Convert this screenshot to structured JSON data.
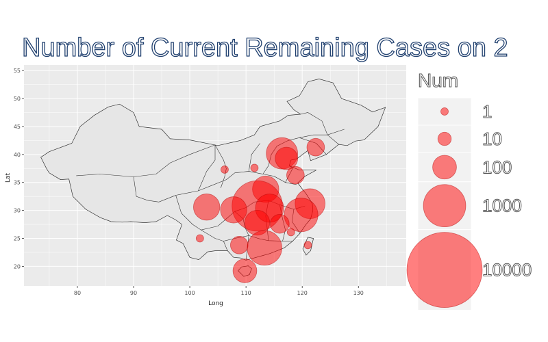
{
  "chart_data": {
    "type": "scatter",
    "title": "Number of Current Remaining Cases on 2",
    "xlabel": "Long",
    "ylabel": "Lat",
    "xlim": [
      70.5,
      138.5
    ],
    "ylim": [
      16.5,
      56
    ],
    "x_ticks": [
      80,
      90,
      100,
      110,
      120,
      130
    ],
    "y_ticks": [
      20,
      25,
      30,
      35,
      40,
      45,
      50,
      55
    ],
    "grid": true,
    "colors": {
      "panel": "#ebebeb",
      "grid": "#ffffff",
      "point": "#ff0000",
      "land": "#e6e6e6",
      "border": "#333333"
    },
    "legend": {
      "title": "Num",
      "placement": "right",
      "entries": [
        {
          "label": "1",
          "value": 1
        },
        {
          "label": "10",
          "value": 10
        },
        {
          "label": "100",
          "value": 100
        },
        {
          "label": "1000",
          "value": 1000
        },
        {
          "label": "10000",
          "value": 10000
        }
      ]
    },
    "points": [
      {
        "x": 116.4,
        "y": 40.2,
        "value": 300
      },
      {
        "x": 117.2,
        "y": 39.3,
        "value": 80
      },
      {
        "x": 122.4,
        "y": 41.3,
        "value": 30
      },
      {
        "x": 118.8,
        "y": 36.3,
        "value": 30
      },
      {
        "x": 113.5,
        "y": 33.8,
        "value": 150
      },
      {
        "x": 112.0,
        "y": 30.8,
        "value": 2000
      },
      {
        "x": 114.2,
        "y": 30.4,
        "value": 200
      },
      {
        "x": 121.4,
        "y": 31.2,
        "value": 250
      },
      {
        "x": 119.8,
        "y": 29.2,
        "value": 400
      },
      {
        "x": 112.0,
        "y": 27.8,
        "value": 120
      },
      {
        "x": 116.0,
        "y": 27.6,
        "value": 40
      },
      {
        "x": 103.0,
        "y": 30.6,
        "value": 150
      },
      {
        "x": 107.8,
        "y": 30.1,
        "value": 150
      },
      {
        "x": 108.8,
        "y": 23.8,
        "value": 30
      },
      {
        "x": 113.3,
        "y": 23.3,
        "value": 450
      },
      {
        "x": 109.8,
        "y": 19.2,
        "value": 100
      },
      {
        "x": 106.2,
        "y": 37.3,
        "value": 1
      },
      {
        "x": 111.5,
        "y": 37.6,
        "value": 1
      },
      {
        "x": 101.8,
        "y": 25.0,
        "value": 1
      },
      {
        "x": 118.0,
        "y": 26.1,
        "value": 1
      },
      {
        "x": 121.0,
        "y": 23.8,
        "value": 1
      }
    ]
  }
}
